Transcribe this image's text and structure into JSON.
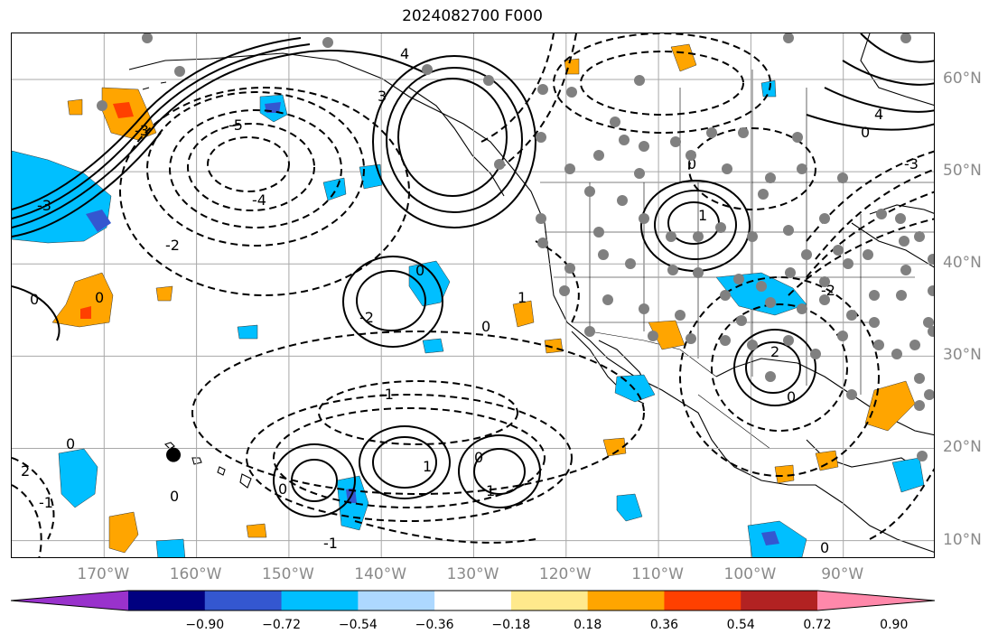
{
  "title": "2024082700 F000",
  "map": {
    "lon_ticks": [
      {
        "label": "170°W",
        "lon": -170
      },
      {
        "label": "160°W",
        "lon": -160
      },
      {
        "label": "150°W",
        "lon": -150
      },
      {
        "label": "140°W",
        "lon": -140
      },
      {
        "label": "130°W",
        "lon": -130
      },
      {
        "label": "120°W",
        "lon": -120
      },
      {
        "label": "110°W",
        "lon": -110
      },
      {
        "label": "100°W",
        "lon": -100
      },
      {
        "label": "90°W",
        "lon": -90
      }
    ],
    "lat_ticks": [
      {
        "label": "60°N",
        "lat": 60
      },
      {
        "label": "50°N",
        "lat": 50
      },
      {
        "label": "40°N",
        "lat": 40
      },
      {
        "label": "30°N",
        "lat": 30
      },
      {
        "label": "20°N",
        "lat": 20
      },
      {
        "label": "10°N",
        "lat": 10
      }
    ],
    "extent": {
      "lon_min": -180,
      "lon_max": -80,
      "lat_min": 8,
      "lat_max": 65
    },
    "contour_labels": [
      "-5",
      "-4",
      "-3",
      "-2",
      "-1",
      "0",
      "1",
      "2",
      "3",
      "4"
    ],
    "station_marker": {
      "lon": -162.5,
      "lat": 19.3
    }
  },
  "colorbar": {
    "colors": [
      "#9932CC",
      "#000080",
      "#3457D0",
      "#00BFFF",
      "#ADD8FF",
      "#FFFFFF",
      "#FFE98C",
      "#FFA500",
      "#FF4000",
      "#B22222",
      "#FF88AA"
    ],
    "tick_labels": [
      "−0.90",
      "−0.72",
      "−0.54",
      "−0.36",
      "−0.18",
      "0.18",
      "0.36",
      "0.54",
      "0.72",
      "0.90"
    ]
  }
}
